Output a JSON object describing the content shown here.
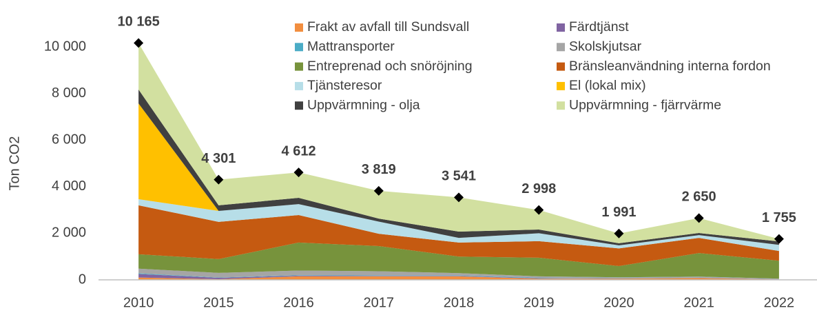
{
  "chart_data": {
    "type": "stacked_area",
    "y_label": "Ton CO2",
    "categories": [
      "2010",
      "2015",
      "2016",
      "2017",
      "2018",
      "2019",
      "2020",
      "2021",
      "2022"
    ],
    "ylim": [
      0,
      10000
    ],
    "yticks": [
      0,
      {
        "value": 2000,
        "label": "2 000"
      },
      {
        "value": 4000,
        "label": "4 000"
      },
      {
        "value": 6000,
        "label": "6 000"
      },
      {
        "value": 8000,
        "label": "8 000"
      },
      {
        "value": 10000,
        "label": "10 000"
      }
    ],
    "grid": false,
    "series": [
      {
        "name": "Frakt av avfall till Sundsvall",
        "color": "#f28e3f",
        "values": [
          100,
          30,
          150,
          150,
          150,
          50,
          50,
          80,
          20
        ]
      },
      {
        "name": "Färdtjänst",
        "color": "#8064a2",
        "values": [
          150,
          60,
          30,
          20,
          20,
          20,
          10,
          10,
          5
        ]
      },
      {
        "name": "Mattransporter",
        "color": "#4bacc6",
        "values": [
          30,
          10,
          20,
          20,
          20,
          20,
          10,
          10,
          5
        ]
      },
      {
        "name": "Skolskjutsar",
        "color": "#a5a5a5",
        "values": [
          200,
          200,
          200,
          180,
          100,
          60,
          40,
          40,
          20
        ]
      },
      {
        "name": "Entreprenad och snöröjning",
        "color": "#77933c",
        "values": [
          620,
          590,
          1200,
          1080,
          710,
          800,
          480,
          1010,
          770
        ]
      },
      {
        "name": "Bränsleanvändning interna fordon",
        "color": "#c55a11",
        "values": [
          2100,
          1600,
          1180,
          530,
          600,
          710,
          760,
          650,
          420
        ]
      },
      {
        "name": "Tjänsteresor",
        "color": "#b7dee8",
        "values": [
          260,
          470,
          470,
          520,
          200,
          340,
          130,
          120,
          260
        ]
      },
      {
        "name": "El (lokal mix)",
        "color": "#ffc000",
        "values": [
          4110,
          0,
          0,
          0,
          0,
          0,
          0,
          0,
          0
        ]
      },
      {
        "name": "Uppvärmning - olja",
        "color": "#404040",
        "values": [
          600,
          240,
          270,
          130,
          270,
          160,
          90,
          90,
          150
        ]
      },
      {
        "name": "Uppvärmning - fjärrvärme",
        "color": "#d2e0a0",
        "values": [
          1995,
          1101,
          1092,
          1189,
          1471,
          838,
          421,
          640,
          105
        ]
      }
    ],
    "totals": {
      "color": "#000000",
      "values": [
        10165,
        4301,
        4612,
        3819,
        3541,
        2998,
        1991,
        2650,
        1755
      ],
      "value_labels": [
        "10 165",
        "4 301",
        "4 612",
        "3 819",
        "3 541",
        "2 998",
        "1 991",
        "2 650",
        "1 755"
      ]
    }
  }
}
